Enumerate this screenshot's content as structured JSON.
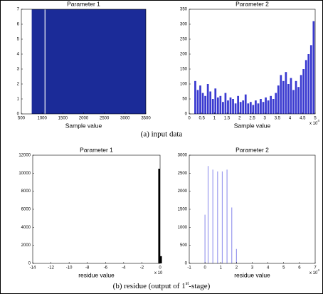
{
  "chart_data": [
    {
      "type": "histogram",
      "title": "Parameter 1",
      "xlabel": "Sample value",
      "color": "#1b2b98",
      "bins": [
        750,
        1060,
        1080,
        3500
      ],
      "counts": [
        7,
        0,
        7
      ],
      "xlim": [
        500,
        3500
      ],
      "xticks": [
        500,
        1000,
        1500,
        2000,
        2500,
        3000,
        3500
      ],
      "ylim": [
        0,
        7
      ],
      "yticks": [
        0,
        1,
        2,
        3,
        4,
        5,
        6,
        7
      ]
    },
    {
      "type": "histogram",
      "title": "Parameter 2",
      "xlabel": "Sample value",
      "color": "#3a3ad0",
      "x_multiplier": {
        "base": "x 10",
        "exponent": "4"
      },
      "bins": [
        0,
        0.1,
        0.2,
        0.3,
        0.4,
        0.5,
        0.6,
        0.7,
        0.8,
        0.9,
        1,
        1.1,
        1.2,
        1.3,
        1.4,
        1.5,
        1.6,
        1.7,
        1.8,
        1.9,
        2,
        2.1,
        2.2,
        2.3,
        2.4,
        2.5,
        2.6,
        2.7,
        2.8,
        2.9,
        3,
        3.1,
        3.2,
        3.3,
        3.4,
        3.5,
        3.6,
        3.7,
        3.8,
        3.9,
        4,
        4.1,
        4.2,
        4.3,
        4.4,
        4.5,
        4.6,
        4.7,
        4.8,
        4.9,
        5
      ],
      "counts": [
        0,
        0,
        110,
        80,
        95,
        70,
        60,
        100,
        75,
        50,
        85,
        55,
        60,
        40,
        70,
        45,
        55,
        50,
        35,
        60,
        40,
        45,
        65,
        35,
        40,
        30,
        45,
        35,
        50,
        40,
        55,
        45,
        60,
        50,
        70,
        95,
        130,
        110,
        140,
        100,
        120,
        80,
        110,
        90,
        130,
        150,
        180,
        200,
        230,
        310
      ],
      "xlim": [
        0,
        5
      ],
      "xticks": [
        0,
        0.5,
        1,
        1.5,
        2,
        2.5,
        3,
        3.5,
        4,
        4.5,
        5
      ],
      "ylim": [
        0,
        350
      ],
      "yticks": [
        0,
        50,
        100,
        150,
        200,
        250,
        300,
        350
      ]
    },
    {
      "type": "histogram",
      "title": "Parameter 1",
      "xlabel": "residue value",
      "color": "#000000",
      "x_multiplier": {
        "base": "x 10",
        "exponent": ""
      },
      "bins": [
        -0.2,
        0,
        0.2
      ],
      "counts": [
        10500,
        800
      ],
      "xlim": [
        -14,
        0
      ],
      "xticks": [
        -14,
        -12,
        -10,
        -8,
        -6,
        -4,
        -2,
        0
      ],
      "ylim": [
        0,
        12000
      ],
      "yticks": [
        0,
        2000,
        4000,
        6000,
        8000,
        10000,
        12000
      ]
    },
    {
      "type": "spike",
      "title": "Parameter 2",
      "xlabel": "residue value",
      "color": "#9a9aee",
      "x_multiplier": {
        "base": "x 10",
        "exponent": "4"
      },
      "x": [
        0,
        0.2,
        0.5,
        0.8,
        1.1,
        1.4,
        1.7,
        2.0
      ],
      "values": [
        1350,
        2700,
        2600,
        2550,
        2550,
        2600,
        1550,
        400
      ],
      "xlim": [
        -1,
        7
      ],
      "xticks": [
        -1,
        0,
        1,
        2,
        3,
        4,
        5,
        6,
        7
      ],
      "ylim": [
        0,
        3000
      ],
      "yticks": [
        0,
        500,
        1000,
        1500,
        2000,
        2500,
        3000
      ]
    }
  ],
  "captions": {
    "a": "(a) input data",
    "b": {
      "before": "(b) residue (output of 1",
      "sup": "st",
      "after": "-stage)"
    }
  }
}
